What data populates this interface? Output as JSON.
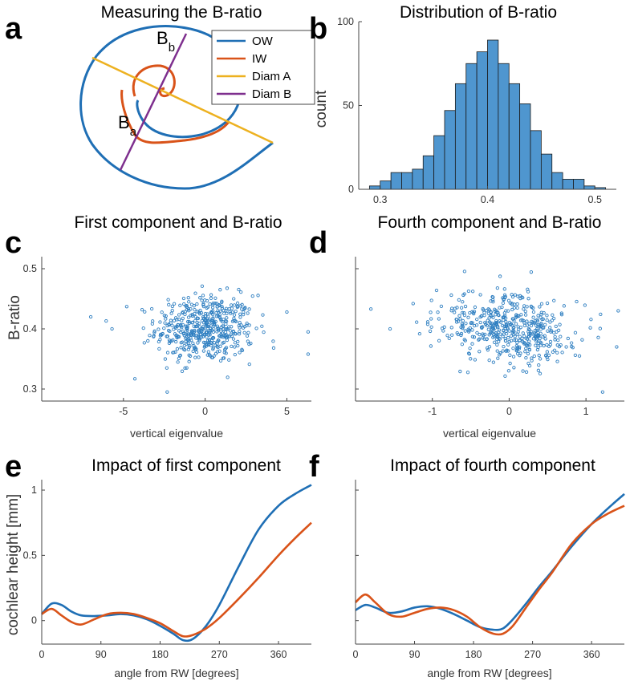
{
  "colors": {
    "ow": "#1f6fb5",
    "iw": "#d95319",
    "diamA": "#edb120",
    "diamB": "#7e2f8e",
    "bar": "#4f96cf",
    "scatter": "#2f7fc1"
  },
  "panels": {
    "a": {
      "letter": "a",
      "title": "Measuring the B-ratio",
      "legend": [
        "OW",
        "IW",
        "Diam A",
        "Diam B"
      ],
      "label_b_main": "B",
      "label_b_sub": "b",
      "label_a_main": "B",
      "label_a_sub": "a"
    },
    "b": {
      "letter": "b",
      "title": "Distribution of B-ratio",
      "ylabel": "count"
    },
    "c": {
      "letter": "c",
      "title": "First component and B-ratio",
      "ylabel": "B-ratio",
      "xlabel": "vertical eigenvalue"
    },
    "d": {
      "letter": "d",
      "title": "Fourth component and B-ratio",
      "xlabel": "vertical eigenvalue"
    },
    "e": {
      "letter": "e",
      "title": "Impact of first component",
      "ylabel": "cochlear height [mm]",
      "xlabel": "angle from RW [degrees]"
    },
    "f": {
      "letter": "f",
      "title": "Impact of fourth component",
      "xlabel": "angle from RW [degrees]"
    }
  },
  "chart_data": [
    {
      "id": "b",
      "type": "bar",
      "title": "Distribution of B-ratio",
      "xlabel": "",
      "ylabel": "count",
      "xlim": [
        0.28,
        0.52
      ],
      "ylim": [
        0,
        100
      ],
      "xticks": [
        0.3,
        0.4,
        0.5
      ],
      "yticks": [
        0,
        50,
        100
      ],
      "bin_edges": [
        0.29,
        0.3,
        0.31,
        0.32,
        0.33,
        0.34,
        0.35,
        0.36,
        0.37,
        0.38,
        0.39,
        0.4,
        0.41,
        0.42,
        0.43,
        0.44,
        0.45,
        0.46,
        0.47,
        0.48,
        0.49,
        0.5,
        0.51
      ],
      "values": [
        2,
        5,
        10,
        10,
        12,
        20,
        32,
        47,
        63,
        75,
        82,
        89,
        75,
        63,
        51,
        35,
        21,
        10,
        6,
        6,
        2,
        1
      ]
    },
    {
      "id": "c",
      "type": "scatter",
      "title": "First component and B-ratio",
      "xlabel": "vertical eigenvalue",
      "ylabel": "B-ratio",
      "xlim": [
        -10,
        6.5
      ],
      "ylim": [
        0.28,
        0.52
      ],
      "xticks": [
        -5,
        0,
        5
      ],
      "yticks": [
        0.3,
        0.4,
        0.5
      ],
      "n_points": 500,
      "x_mean": 0,
      "x_sd": 1.5,
      "y_mean": 0.4,
      "y_sd": 0.035,
      "outliers": [
        [
          -7,
          0.42
        ],
        [
          -5.7,
          0.4
        ],
        [
          -4.3,
          0.317
        ],
        [
          5,
          0.428
        ],
        [
          6.3,
          0.358
        ],
        [
          6.3,
          0.395
        ],
        [
          -4.8,
          0.437
        ]
      ]
    },
    {
      "id": "d",
      "type": "scatter",
      "title": "Fourth component and B-ratio",
      "xlabel": "vertical eigenvalue",
      "ylabel": "",
      "xlim": [
        -2,
        1.5
      ],
      "ylim": [
        0.28,
        0.52
      ],
      "xticks": [
        -1,
        0,
        1
      ],
      "yticks": [
        0.3,
        0.4,
        0.5
      ],
      "n_points": 500,
      "x_mean": 0,
      "x_sd": 0.45,
      "y_mean": 0.4,
      "y_sd": 0.035,
      "slope": -0.015,
      "outliers": [
        [
          -1.8,
          0.433
        ],
        [
          -1.55,
          0.4
        ],
        [
          1.42,
          0.43
        ],
        [
          1.4,
          0.37
        ],
        [
          -1.25,
          0.442
        ]
      ]
    },
    {
      "id": "e",
      "type": "line",
      "title": "Impact of first component",
      "xlabel": "angle from RW [degrees]",
      "ylabel": "cochlear height [mm]",
      "xlim": [
        0,
        410
      ],
      "ylim": [
        -0.18,
        1.08
      ],
      "xticks": [
        0,
        90,
        180,
        270,
        360
      ],
      "yticks": [
        0,
        0.5,
        1
      ],
      "series": [
        {
          "name": "blue",
          "x": [
            0,
            15,
            30,
            45,
            60,
            80,
            100,
            120,
            140,
            160,
            180,
            200,
            215,
            230,
            250,
            270,
            300,
            330,
            360,
            385,
            410
          ],
          "y": [
            0.05,
            0.13,
            0.12,
            0.07,
            0.04,
            0.035,
            0.04,
            0.05,
            0.04,
            0.01,
            -0.04,
            -0.1,
            -0.15,
            -0.14,
            -0.04,
            0.12,
            0.42,
            0.7,
            0.88,
            0.97,
            1.04
          ]
        },
        {
          "name": "orange",
          "x": [
            0,
            15,
            30,
            45,
            60,
            80,
            100,
            120,
            140,
            160,
            180,
            200,
            215,
            230,
            250,
            270,
            300,
            330,
            360,
            385,
            410
          ],
          "y": [
            0.05,
            0.09,
            0.04,
            -0.01,
            -0.03,
            0.01,
            0.05,
            0.06,
            0.05,
            0.02,
            -0.02,
            -0.08,
            -0.12,
            -0.11,
            -0.06,
            0.02,
            0.17,
            0.33,
            0.5,
            0.63,
            0.75
          ]
        }
      ]
    },
    {
      "id": "f",
      "type": "line",
      "title": "Impact of fourth component",
      "xlabel": "angle from RW [degrees]",
      "ylabel": "",
      "xlim": [
        0,
        410
      ],
      "ylim": [
        -0.18,
        1.08
      ],
      "xticks": [
        0,
        90,
        180,
        270,
        360
      ],
      "yticks": [
        0,
        0.5,
        1
      ],
      "series": [
        {
          "name": "blue",
          "x": [
            0,
            15,
            30,
            50,
            70,
            90,
            110,
            130,
            150,
            170,
            190,
            210,
            225,
            240,
            260,
            280,
            300,
            330,
            360,
            385,
            410
          ],
          "y": [
            0.08,
            0.12,
            0.1,
            0.06,
            0.07,
            0.1,
            0.11,
            0.09,
            0.05,
            0.0,
            -0.05,
            -0.07,
            -0.06,
            0.01,
            0.13,
            0.26,
            0.38,
            0.57,
            0.74,
            0.86,
            0.97
          ]
        },
        {
          "name": "orange",
          "x": [
            0,
            15,
            30,
            50,
            70,
            90,
            110,
            130,
            150,
            170,
            190,
            210,
            225,
            240,
            260,
            280,
            300,
            330,
            360,
            385,
            410
          ],
          "y": [
            0.14,
            0.2,
            0.14,
            0.05,
            0.03,
            0.06,
            0.09,
            0.1,
            0.08,
            0.03,
            -0.05,
            -0.1,
            -0.1,
            -0.04,
            0.1,
            0.24,
            0.37,
            0.59,
            0.74,
            0.82,
            0.88
          ]
        }
      ]
    }
  ]
}
